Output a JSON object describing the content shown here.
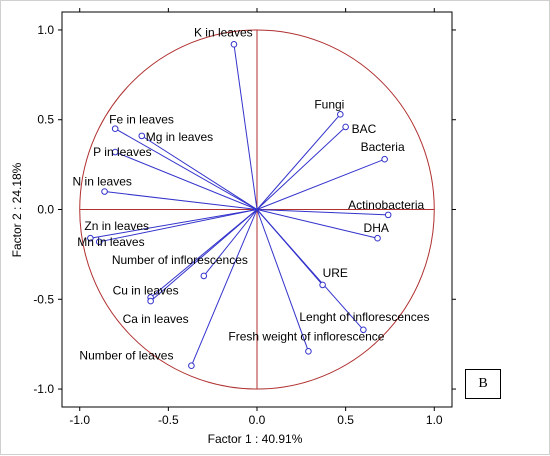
{
  "chart_data": {
    "type": "scatter",
    "subtype": "pca-correlation-circle",
    "xlabel": "Factor 1 : 40.91%",
    "ylabel": "Factor 2 : 24.18%",
    "xlim": [
      -1.1,
      1.1
    ],
    "ylim": [
      -1.1,
      1.1
    ],
    "xticks": [
      -1.0,
      -0.5,
      0.0,
      0.5,
      1.0
    ],
    "yticks": [
      1.0,
      0.5,
      0.0,
      -0.5,
      -1.0
    ],
    "xtick_labels": [
      "-1.0",
      "-0.5",
      "0.0",
      "0.5",
      "1.0"
    ],
    "ytick_labels": [
      "1.0",
      "0.5",
      "0.0",
      "-0.5",
      "-1.0"
    ],
    "grid": false,
    "circle_radius": 1.0,
    "colors": {
      "vectors": "#3333cc",
      "circle": "#b03030",
      "axes": "#b03030"
    },
    "points": [
      {
        "label": "K in leaves",
        "x": -0.13,
        "y": 0.92
      },
      {
        "label": "Fungi",
        "x": 0.47,
        "y": 0.53
      },
      {
        "label": "BAC",
        "x": 0.5,
        "y": 0.46
      },
      {
        "label": "Bacteria",
        "x": 0.72,
        "y": 0.28
      },
      {
        "label": "Fe in leaves",
        "x": -0.8,
        "y": 0.45
      },
      {
        "label": "Mg in leaves",
        "x": -0.65,
        "y": 0.41
      },
      {
        "label": "P in leaves",
        "x": -0.8,
        "y": 0.32
      },
      {
        "label": "N in leaves",
        "x": -0.86,
        "y": 0.1
      },
      {
        "label": "Actinobacteria",
        "x": 0.74,
        "y": -0.03
      },
      {
        "label": "DHA",
        "x": 0.68,
        "y": -0.16
      },
      {
        "label": "Zn in leaves",
        "x": -0.94,
        "y": -0.16
      },
      {
        "label": "Mn in leaves",
        "x": -0.89,
        "y": -0.18
      },
      {
        "label": "Number of inflorescences",
        "x": -0.3,
        "y": -0.37
      },
      {
        "label": "URE",
        "x": 0.37,
        "y": -0.42
      },
      {
        "label": "Cu in leaves",
        "x": -0.6,
        "y": -0.49
      },
      {
        "label": "Ca in leaves",
        "x": -0.6,
        "y": -0.51
      },
      {
        "label": "Lenght of inflorescences",
        "x": 0.6,
        "y": -0.67
      },
      {
        "label": "Fresh weight of inflorescence",
        "x": 0.29,
        "y": -0.79
      },
      {
        "label": "Number of leaves",
        "x": -0.37,
        "y": -0.87
      }
    ]
  },
  "panel_label": "B"
}
